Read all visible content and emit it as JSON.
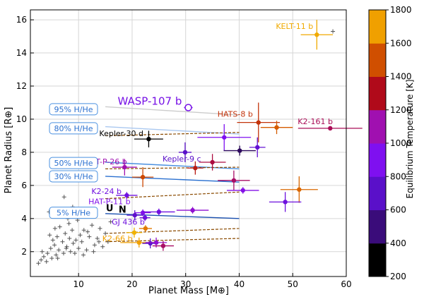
{
  "chart_data": {
    "type": "scatter",
    "xlabel": "Planet Mass [M⊕]",
    "ylabel": "Planet Radius [R⊕]",
    "xlim": [
      1,
      60
    ],
    "ylim": [
      0.5,
      16.6
    ],
    "xticks": [
      "10",
      "20",
      "30",
      "40",
      "50",
      "60"
    ],
    "yticks": [
      "2",
      "4",
      "6",
      "8",
      "10",
      "12",
      "14",
      "16"
    ],
    "grid": true,
    "colorbar": {
      "label": "Equilibrium Temperature [K]",
      "range": [
        200,
        1800
      ],
      "ticks": [
        "200",
        "400",
        "600",
        "800",
        "1000",
        "1200",
        "1400",
        "1600",
        "1800"
      ],
      "colors": [
        "#000000",
        "#3a0c7a",
        "#5a10c9",
        "#7f10f0",
        "#a010b0",
        "#b00a1a",
        "#d04f00",
        "#f0a000"
      ]
    },
    "series": [
      {
        "name": "Planets",
        "points": [
          {
            "label": "KELT-11 b",
            "x": 54.5,
            "y": 15.1,
            "xerr": 3,
            "yerr": 0.9,
            "teq": 1700
          },
          {
            "label": "WASP-107 b",
            "x": 30.5,
            "y": 10.7,
            "xerr": 0.8,
            "yerr": 0.2,
            "teq": 750,
            "open": true
          },
          {
            "label": "HATS-8 b",
            "x": 43.6,
            "y": 9.8,
            "xerr": 4,
            "yerr": 1.2,
            "teq": 1320
          },
          {
            "label": "K2-161 b",
            "x": 57.0,
            "y": 9.45,
            "xerr": 6,
            "yerr": 0,
            "teq": 1120
          },
          {
            "label": "",
            "x": 47.0,
            "y": 9.5,
            "xerr": 3,
            "yerr": 0.4,
            "teq": 1430
          },
          {
            "label": "Kepler-30 d",
            "x": 23.1,
            "y": 8.8,
            "xerr": 2.7,
            "yerr": 0.5,
            "teq": 200
          },
          {
            "label": "",
            "x": 37.2,
            "y": 8.9,
            "xerr": 5,
            "yerr": 0.8,
            "teq": 800
          },
          {
            "label": "",
            "x": 40.1,
            "y": 8.1,
            "xerr": 3,
            "yerr": 0.3,
            "teq": 350
          },
          {
            "label": "",
            "x": 43.4,
            "y": 8.3,
            "xerr": 1.5,
            "yerr": 0.6,
            "teq": 650
          },
          {
            "label": "Kepler-9 c",
            "x": 29.9,
            "y": 8.0,
            "xerr": 1.2,
            "yerr": 0.6,
            "teq": 600
          },
          {
            "label": "HAT-P-26 b",
            "x": 18.6,
            "y": 7.1,
            "xerr": 2.3,
            "yerr": 0.5,
            "teq": 1000
          },
          {
            "label": "",
            "x": 22.0,
            "y": 6.5,
            "xerr": 2,
            "yerr": 0.6,
            "teq": 1380
          },
          {
            "label": "",
            "x": 31.8,
            "y": 7.05,
            "xerr": 1.5,
            "yerr": 0.4,
            "teq": 1250
          },
          {
            "label": "",
            "x": 35.0,
            "y": 7.4,
            "xerr": 2.5,
            "yerr": 0.5,
            "teq": 1150
          },
          {
            "label": "",
            "x": 39.0,
            "y": 6.3,
            "xerr": 3,
            "yerr": 0.6,
            "teq": 1100
          },
          {
            "label": "",
            "x": 51.2,
            "y": 5.75,
            "xerr": 3.5,
            "yerr": 0.8,
            "teq": 1460
          },
          {
            "label": "K2-24 b",
            "x": 19.0,
            "y": 5.4,
            "xerr": 2,
            "yerr": 0.2,
            "teq": 720
          },
          {
            "label": "",
            "x": 40.7,
            "y": 5.7,
            "xerr": 3,
            "yerr": 0.2,
            "teq": 830
          },
          {
            "label": "",
            "x": 48.6,
            "y": 5.0,
            "xerr": 3,
            "yerr": 0.6,
            "teq": 700
          },
          {
            "label": "HAT-P-11 b",
            "x": 22.0,
            "y": 4.35,
            "xerr": 1.5,
            "yerr": 0.2,
            "teq": 820
          },
          {
            "label": "",
            "x": 20.5,
            "y": 4.2,
            "xerr": 1.5,
            "yerr": 0.3,
            "teq": 620
          },
          {
            "label": "",
            "x": 25.0,
            "y": 4.4,
            "xerr": 3,
            "yerr": 0.2,
            "teq": 720
          },
          {
            "label": "",
            "x": 31.3,
            "y": 4.5,
            "xerr": 3,
            "yerr": 0.2,
            "teq": 900
          },
          {
            "label": "GJ 436 b",
            "x": 22.4,
            "y": 4.05,
            "xerr": 1,
            "yerr": 0.2,
            "teq": 700
          },
          {
            "label": "",
            "x": 20.4,
            "y": 3.15,
            "xerr": 1.5,
            "yerr": 0.3,
            "teq": 1780
          },
          {
            "label": "",
            "x": 22.5,
            "y": 3.4,
            "xerr": 1.2,
            "yerr": 0.2,
            "teq": 1500
          },
          {
            "label": "K2-66 b",
            "x": 21.3,
            "y": 2.55,
            "xerr": 3.5,
            "yerr": 0.3,
            "teq": 1600
          },
          {
            "label": "",
            "x": 23.4,
            "y": 2.5,
            "xerr": 1.5,
            "yerr": 0.3,
            "teq": 600
          },
          {
            "label": "",
            "x": 24.5,
            "y": 2.55,
            "xerr": 2,
            "yerr": 0.3,
            "teq": 900
          },
          {
            "label": "",
            "x": 25.8,
            "y": 2.35,
            "xerr": 2,
            "yerr": 0.3,
            "teq": 1100
          }
        ]
      },
      {
        "name": "Small planets",
        "marker": "+",
        "color": "#555555",
        "x": [
          2.5,
          3.0,
          3.5,
          4.0,
          4.2,
          4.8,
          5.0,
          5.5,
          5.8,
          6.0,
          6.3,
          6.5,
          7.0,
          7.2,
          7.5,
          7.8,
          8.0,
          8.3,
          8.5,
          8.8,
          9.0,
          9.3,
          9.5,
          9.8,
          10.0,
          10.3,
          10.6,
          11.0,
          11.5,
          12.0,
          12.5,
          13.0,
          13.5,
          14.0,
          14.5,
          5.2,
          6.8,
          8.2,
          9.6,
          3.2,
          4.6,
          7.3,
          10.9,
          12.2,
          13.8,
          6.1,
          5.6,
          8.9,
          11.7,
          12.8,
          15.0,
          15.5,
          16.0,
          57.5,
          4.5,
          7.7
        ],
        "y": [
          1.3,
          1.5,
          1.7,
          1.4,
          1.9,
          2.2,
          1.6,
          2.4,
          1.8,
          2.9,
          2.1,
          3.5,
          2.6,
          1.9,
          3.1,
          2.3,
          4.0,
          2.8,
          2.0,
          3.3,
          2.5,
          1.9,
          2.7,
          3.9,
          2.2,
          3.0,
          2.6,
          3.3,
          2.1,
          2.9,
          3.6,
          2.4,
          2.8,
          3.4,
          2.3,
          2.7,
          4.4,
          3.7,
          4.2,
          2.0,
          3.0,
          5.3,
          1.8,
          4.3,
          2.6,
          1.6,
          3.4,
          4.7,
          3.2,
          2.0,
          3.1,
          2.6,
          3.8,
          15.3,
          4.4,
          2.2
        ]
      }
    ],
    "models": [
      {
        "label": "95% H/He",
        "y": 10.25,
        "style": "solid",
        "color": "#cccccc"
      },
      {
        "label": "80% H/He",
        "y": 9.1,
        "style": "solid",
        "color": "#aac8f0"
      },
      {
        "label": "50% H/He",
        "y": 7.0,
        "style": "solid",
        "color": "#4a90e0"
      },
      {
        "label": "30% H/He",
        "y": 6.2,
        "style": "solid",
        "color": "#2a70d0"
      },
      {
        "label": "5% H/He",
        "y": 4.0,
        "style": "solid",
        "color": "#1a50b0"
      }
    ],
    "annotations": [
      "U",
      "N"
    ]
  }
}
